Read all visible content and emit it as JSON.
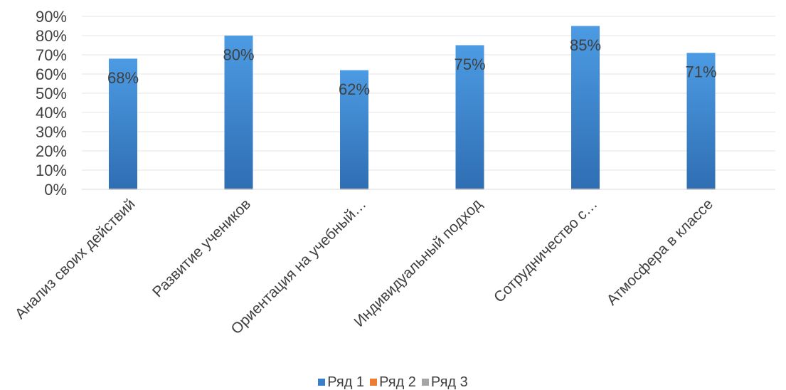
{
  "chart_data": {
    "type": "bar",
    "categories": [
      "Анализ своих действий",
      "Развитие учеников",
      "Ориентация на учебный…",
      "Индивидуальный подход",
      "Сотрудничество с…",
      "Атмосфера в классе"
    ],
    "series": [
      {
        "name": "Ряд 1",
        "values": [
          68,
          80,
          62,
          75,
          85,
          71
        ],
        "color": "#3a7fc9",
        "labels": [
          "68%",
          "80%",
          "62%",
          "75%",
          "85%",
          "71%"
        ]
      },
      {
        "name": "Ряд 2",
        "values": [
          0,
          0,
          0,
          0,
          0,
          0
        ],
        "color": "#ed7d31"
      },
      {
        "name": "Ряд 3",
        "values": [
          0,
          0,
          0,
          0,
          0,
          0
        ],
        "color": "#a5a5a5"
      }
    ],
    "yticks": [
      "0%",
      "10%",
      "20%",
      "30%",
      "40%",
      "50%",
      "60%",
      "70%",
      "80%",
      "90%"
    ],
    "ylim": [
      0,
      90
    ],
    "grid": true,
    "legend_position": "bottom",
    "title": "",
    "xlabel": "",
    "ylabel": ""
  }
}
